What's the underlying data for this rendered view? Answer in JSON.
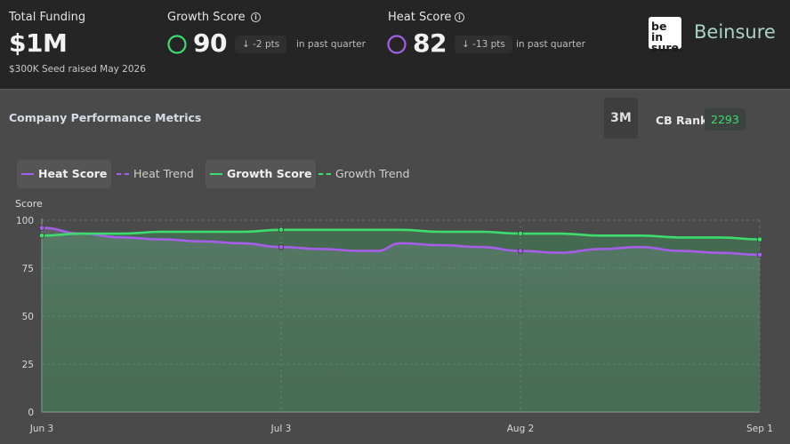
{
  "header": {
    "total_funding": {
      "title": "Total Funding",
      "value": "$1M",
      "sub": "$300K Seed raised May 2026"
    },
    "growth": {
      "title": "Growth Score",
      "value": "90",
      "delta": "↓ -2 pts",
      "period": "in past quarter",
      "color": "#3ddc6c",
      "info_icon": "info-icon"
    },
    "heat": {
      "title": "Heat Score",
      "value": "82",
      "delta": "↓ -13 pts",
      "period": "in past quarter",
      "color": "#a55ee8",
      "info_icon": "info-icon"
    },
    "brand": {
      "logo_line1": "be in",
      "logo_line2": "sure.",
      "name": "Beinsure"
    }
  },
  "section": {
    "title": "Company Performance Metrics",
    "range": "3M",
    "rank_label": "CB Rank",
    "rank_value": "2293"
  },
  "legend": [
    {
      "label": "Heat Score",
      "color": "#a55ee8",
      "style": "solid",
      "active": true
    },
    {
      "label": "Heat Trend",
      "color": "#a55ee8",
      "style": "dashed",
      "active": false
    },
    {
      "label": "Growth Score",
      "color": "#3ddc6c",
      "style": "solid",
      "active": true
    },
    {
      "label": "Growth Trend",
      "color": "#3ddc6c",
      "style": "dashed",
      "active": false
    }
  ],
  "chart_data": {
    "type": "line",
    "ylabel": "Score",
    "ylim": [
      0,
      100
    ],
    "yticks": [
      0,
      25,
      50,
      75,
      100
    ],
    "grid": true,
    "x_ticks": [
      "Jun 3",
      "Jul 3",
      "Aug 2",
      "Sep 1"
    ],
    "x_tick_days": [
      0,
      30,
      60,
      90
    ],
    "series": [
      {
        "name": "Heat Score",
        "color": "#a55ee8",
        "x_days": [
          0,
          5,
          10,
          15,
          20,
          25,
          30,
          35,
          40,
          42,
          45,
          50,
          55,
          60,
          65,
          70,
          75,
          80,
          85,
          90
        ],
        "values": [
          96,
          93,
          91,
          90,
          89,
          88,
          86,
          85,
          84,
          84,
          88,
          87,
          86,
          84,
          83,
          85,
          86,
          84,
          83,
          82
        ],
        "markers_at_days": [
          0,
          30,
          60,
          90
        ]
      },
      {
        "name": "Growth Score",
        "color": "#3ddc6c",
        "x_days": [
          0,
          5,
          10,
          15,
          20,
          25,
          30,
          35,
          40,
          45,
          50,
          55,
          60,
          65,
          70,
          75,
          80,
          85,
          90
        ],
        "values": [
          92,
          93,
          93,
          94,
          94,
          94,
          95,
          95,
          95,
          95,
          94,
          94,
          93,
          93,
          92,
          92,
          91,
          91,
          90
        ],
        "markers_at_days": [
          0,
          30,
          60,
          90
        ]
      }
    ]
  }
}
